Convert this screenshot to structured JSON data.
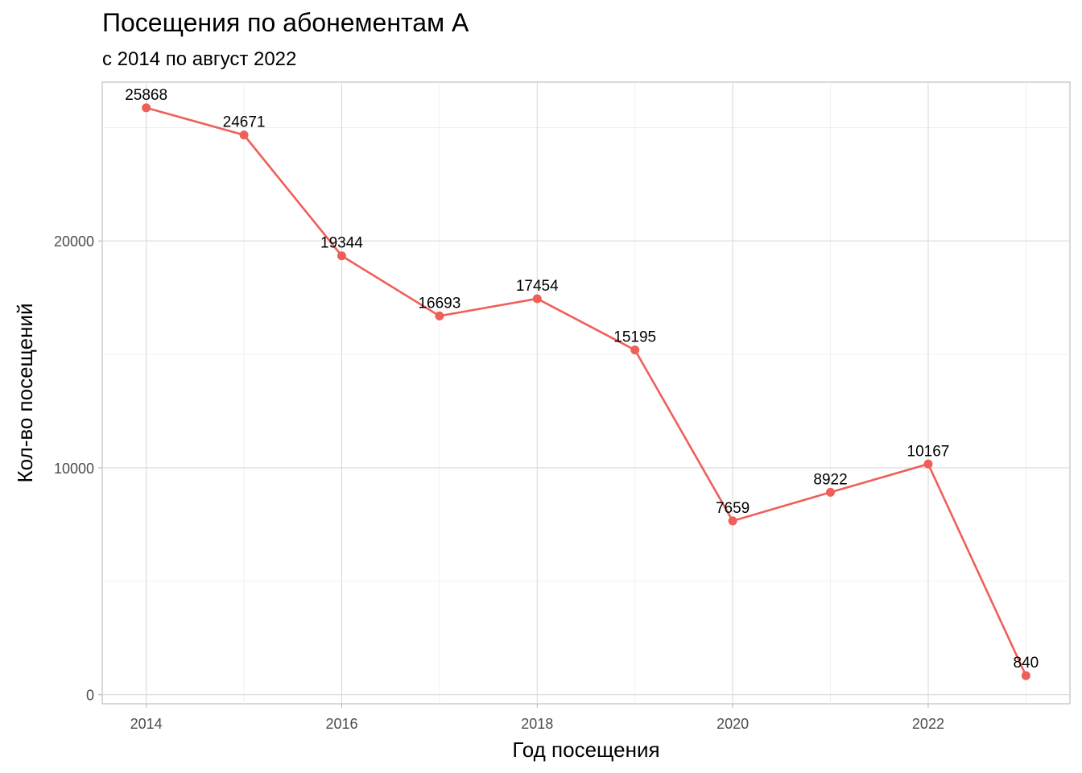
{
  "chart_data": {
    "type": "line",
    "title": "Посещения по абонементам А",
    "subtitle": "с 2014 по август 2022",
    "xlabel": "Год посещения",
    "ylabel": "Кол-во посещений",
    "x": [
      2014,
      2015,
      2016,
      2017,
      2018,
      2019,
      2020,
      2021,
      2022,
      2023
    ],
    "values": [
      25868,
      24671,
      19344,
      16693,
      17454,
      15195,
      7659,
      8922,
      10167,
      840
    ],
    "x_ticks": [
      2014,
      2016,
      2018,
      2020,
      2022
    ],
    "y_ticks": [
      0,
      10000,
      20000
    ],
    "xlim": [
      2013.55,
      2023.45
    ],
    "ylim": [
      -400,
      27000
    ],
    "grid": true,
    "color": "#ef5f5a"
  }
}
